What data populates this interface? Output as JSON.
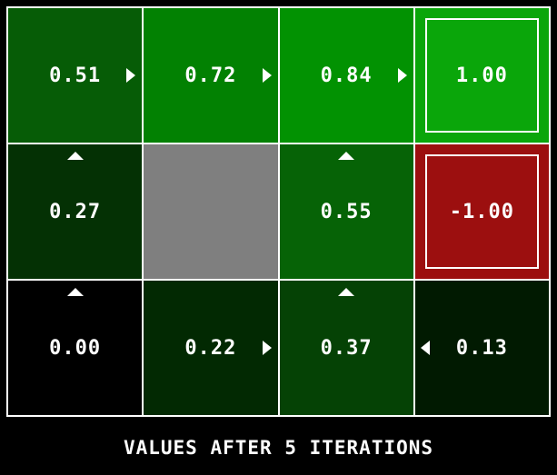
{
  "title": "VALUES AFTER 5 ITERATIONS",
  "colors": {
    "background": "#000000",
    "gridline": "#ffffff",
    "text": "#ffffff",
    "wall": "#7f7f7f",
    "positive_terminal": "#0aa60a",
    "negative_terminal": "#9c0f0f"
  },
  "grid": {
    "rows": 3,
    "cols": 4,
    "cells": [
      {
        "row": 0,
        "col": 0,
        "value": "0.51",
        "bg": "#065c06",
        "arrow": "right",
        "type": "state"
      },
      {
        "row": 0,
        "col": 1,
        "value": "0.72",
        "bg": "#028102",
        "arrow": "right",
        "type": "state"
      },
      {
        "row": 0,
        "col": 2,
        "value": "0.84",
        "bg": "#029202",
        "arrow": "right",
        "type": "state"
      },
      {
        "row": 0,
        "col": 3,
        "value": "1.00",
        "bg": "#0aa60a",
        "arrow": null,
        "type": "terminal"
      },
      {
        "row": 1,
        "col": 0,
        "value": "0.27",
        "bg": "#043104",
        "arrow": "up",
        "type": "state"
      },
      {
        "row": 1,
        "col": 1,
        "value": "",
        "bg": "#7f7f7f",
        "arrow": null,
        "type": "wall"
      },
      {
        "row": 1,
        "col": 2,
        "value": "0.55",
        "bg": "#066306",
        "arrow": "up",
        "type": "state"
      },
      {
        "row": 1,
        "col": 3,
        "value": "-1.00",
        "bg": "#9c0f0f",
        "arrow": null,
        "type": "terminal"
      },
      {
        "row": 2,
        "col": 0,
        "value": "0.00",
        "bg": "#000000",
        "arrow": "up",
        "type": "state"
      },
      {
        "row": 2,
        "col": 1,
        "value": "0.22",
        "bg": "#022902",
        "arrow": "right",
        "type": "state"
      },
      {
        "row": 2,
        "col": 2,
        "value": "0.37",
        "bg": "#054205",
        "arrow": "up",
        "type": "state"
      },
      {
        "row": 2,
        "col": 3,
        "value": "0.13",
        "bg": "#011a01",
        "arrow": "left",
        "type": "state"
      }
    ]
  },
  "chart_data": {
    "type": "heatmap",
    "title": "VALUES AFTER 5 ITERATIONS",
    "rows": 3,
    "cols": 4,
    "values": [
      [
        0.51,
        0.72,
        0.84,
        1.0
      ],
      [
        0.27,
        null,
        0.55,
        -1.0
      ],
      [
        0.0,
        0.22,
        0.37,
        0.13
      ]
    ],
    "policy_arrows": [
      [
        "right",
        "right",
        "right",
        null
      ],
      [
        "up",
        null,
        "up",
        null
      ],
      [
        "up",
        "right",
        "up",
        "left"
      ]
    ],
    "terminal_states": [
      [
        0,
        3
      ],
      [
        1,
        3
      ]
    ],
    "wall_cells": [
      [
        1,
        1
      ]
    ],
    "legend_position": "none",
    "grid_lines": "white",
    "color_scale": "green intensity proportional to positive value, red for negative, black at zero, gray for wall"
  }
}
